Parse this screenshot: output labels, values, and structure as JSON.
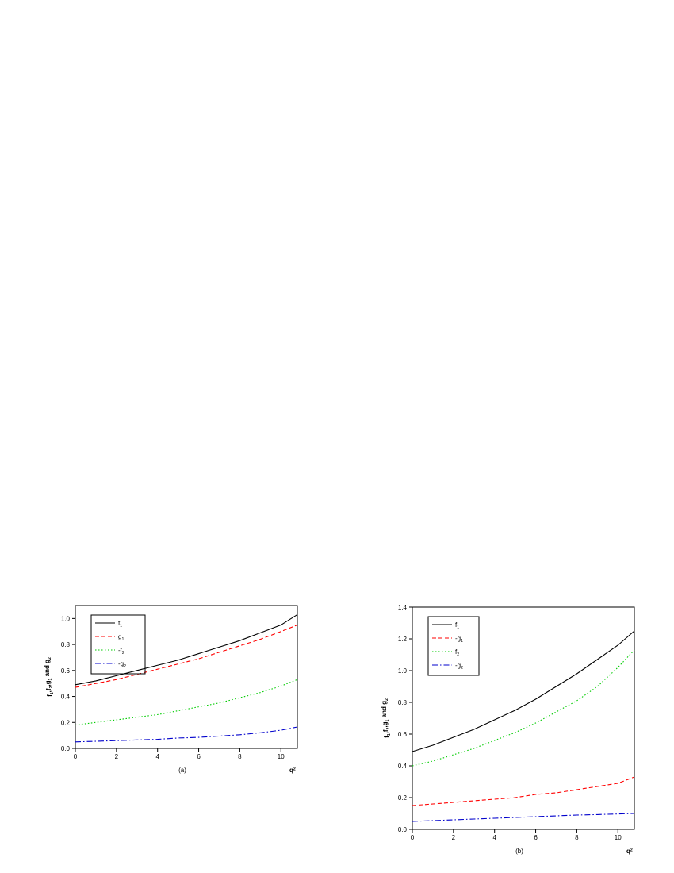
{
  "chart_data": [
    {
      "type": "line",
      "caption": "(a)",
      "xlabel": "q2",
      "ylabel": "f1,f2,g1 and g2",
      "x": [
        0,
        1,
        2,
        3,
        4,
        5,
        6,
        7,
        8,
        9,
        10,
        10.8
      ],
      "xlim": [
        0,
        10.8
      ],
      "xticks": [
        0,
        2,
        4,
        6,
        8,
        10
      ],
      "ylim": [
        0,
        1.1
      ],
      "yticks": [
        {
          "value": 0,
          "label": "0.0"
        },
        0.2,
        0.4,
        0.6,
        0.8,
        {
          "value": 1,
          "label": "1.0"
        }
      ],
      "legend": "upper left",
      "series": [
        {
          "name": "f1",
          "color": "#000000",
          "style": "solid",
          "values": [
            0.49,
            0.52,
            0.56,
            0.6,
            0.64,
            0.68,
            0.73,
            0.78,
            0.83,
            0.89,
            0.95,
            1.03
          ]
        },
        {
          "name": "g1",
          "color": "#ff0000",
          "style": "dashed",
          "values": [
            0.47,
            0.5,
            0.53,
            0.57,
            0.61,
            0.65,
            0.69,
            0.74,
            0.79,
            0.84,
            0.9,
            0.95
          ]
        },
        {
          "name": "-f2",
          "color": "#00cc00",
          "style": "dotted",
          "values": [
            0.18,
            0.2,
            0.22,
            0.24,
            0.26,
            0.29,
            0.32,
            0.35,
            0.39,
            0.43,
            0.48,
            0.53
          ]
        },
        {
          "name": "-g2",
          "color": "#0000cc",
          "style": "dashdot",
          "values": [
            0.05,
            0.055,
            0.06,
            0.065,
            0.07,
            0.08,
            0.085,
            0.095,
            0.105,
            0.12,
            0.14,
            0.165
          ]
        }
      ]
    },
    {
      "type": "line",
      "caption": "(b)",
      "xlabel": "q2",
      "ylabel": "f1,f2,g1 and g2",
      "x": [
        0,
        1,
        2,
        3,
        4,
        5,
        6,
        7,
        8,
        9,
        10,
        10.8
      ],
      "xlim": [
        0,
        10.8
      ],
      "xticks": [
        0,
        2,
        4,
        6,
        8,
        10
      ],
      "ylim": [
        0,
        1.4
      ],
      "yticks": [
        {
          "value": 0,
          "label": "0.0"
        },
        0.2,
        0.4,
        0.6,
        0.8,
        {
          "value": 1,
          "label": "1.0"
        },
        1.2,
        1.4
      ],
      "legend": "upper left",
      "series": [
        {
          "name": "f1",
          "color": "#000000",
          "style": "solid",
          "values": [
            0.49,
            0.53,
            0.58,
            0.63,
            0.69,
            0.75,
            0.82,
            0.9,
            0.98,
            1.07,
            1.16,
            1.25
          ]
        },
        {
          "name": "-g1",
          "color": "#ff0000",
          "style": "dashed",
          "values": [
            0.15,
            0.16,
            0.17,
            0.18,
            0.19,
            0.2,
            0.22,
            0.23,
            0.25,
            0.27,
            0.29,
            0.33
          ]
        },
        {
          "name": "f2",
          "color": "#00cc00",
          "style": "dotted",
          "values": [
            0.4,
            0.43,
            0.47,
            0.51,
            0.56,
            0.61,
            0.67,
            0.74,
            0.81,
            0.9,
            1.02,
            1.13
          ]
        },
        {
          "name": "-g2",
          "color": "#0000cc",
          "style": "dashdot",
          "values": [
            0.05,
            0.055,
            0.06,
            0.065,
            0.07,
            0.075,
            0.08,
            0.085,
            0.09,
            0.093,
            0.097,
            0.1
          ]
        }
      ]
    }
  ]
}
